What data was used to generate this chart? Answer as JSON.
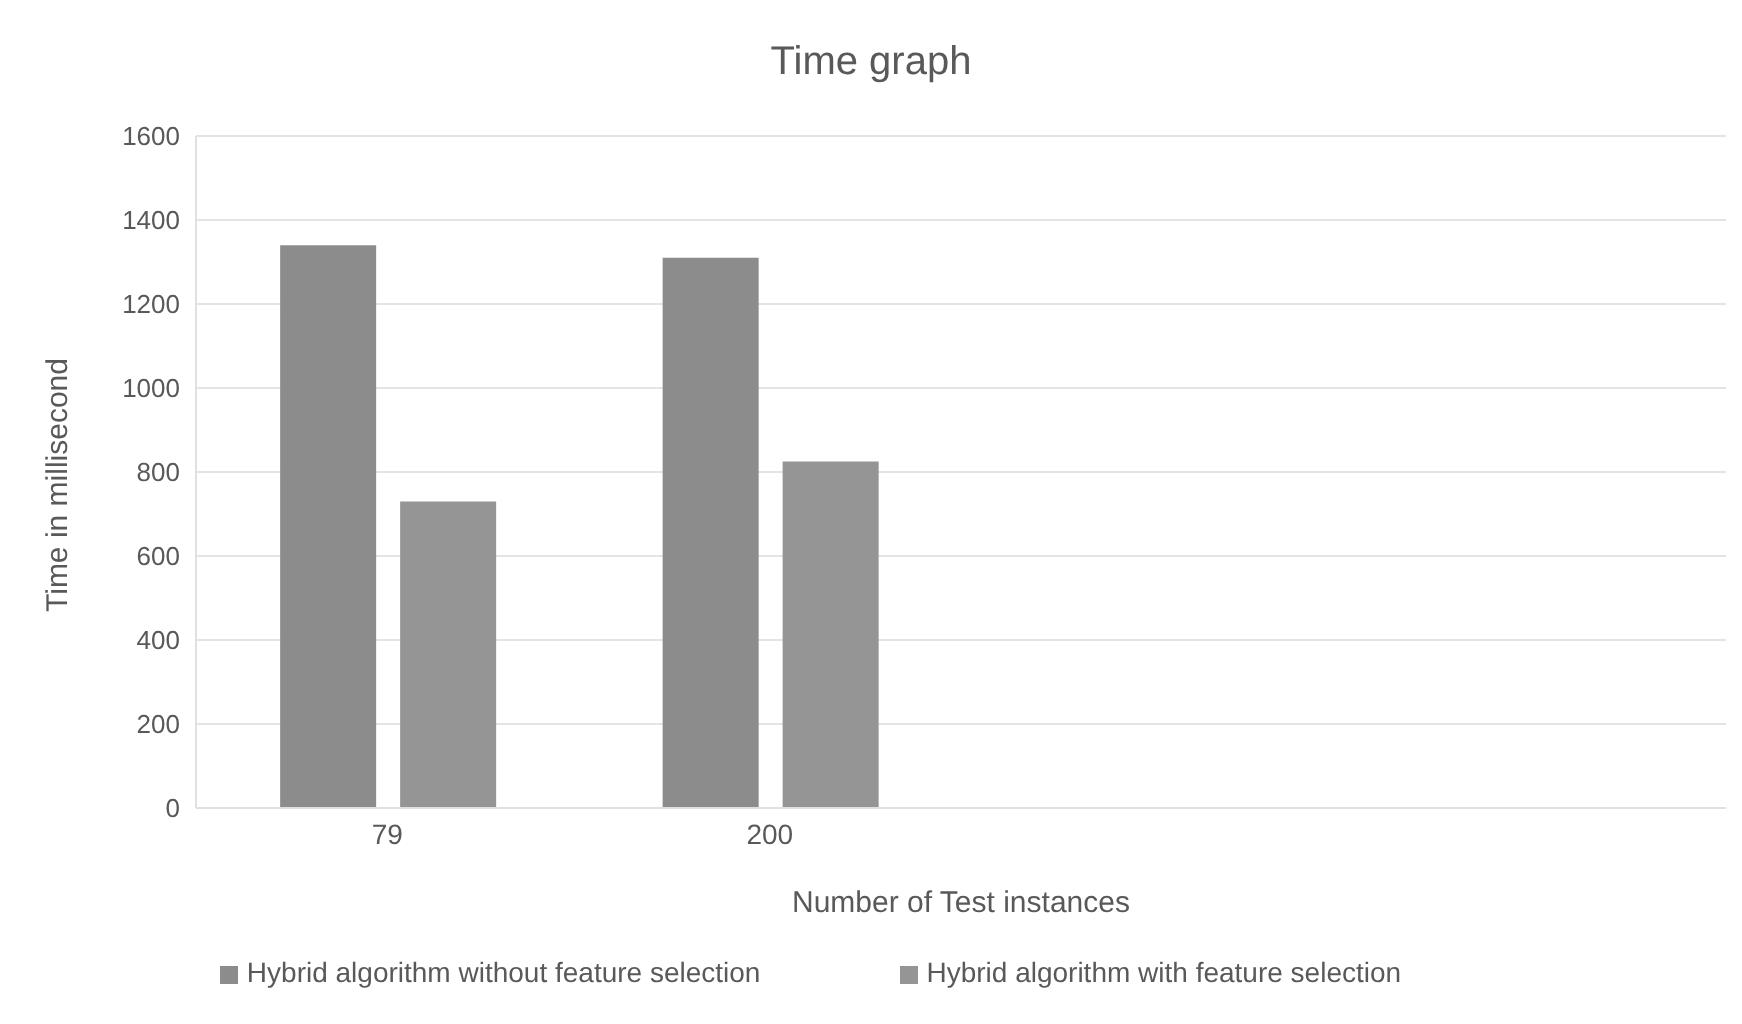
{
  "chart_data": {
    "type": "bar",
    "title": "Time graph",
    "xlabel": "Number of Test instances",
    "ylabel": "Time in millisecond",
    "categories": [
      "79",
      "200",
      null,
      null
    ],
    "series": [
      {
        "name": "Hybrid algorithm without feature selection",
        "color": "#8c8c8c",
        "values": [
          1340,
          1310,
          null,
          null
        ]
      },
      {
        "name": "Hybrid algorithm with feature selection",
        "color": "#959595",
        "values": [
          730,
          825,
          null,
          null
        ]
      }
    ],
    "ylim": [
      0,
      1600
    ],
    "yticks": [
      0,
      200,
      400,
      600,
      800,
      1000,
      1200,
      1400,
      1600
    ],
    "grid": "y",
    "legend": "bottom"
  }
}
